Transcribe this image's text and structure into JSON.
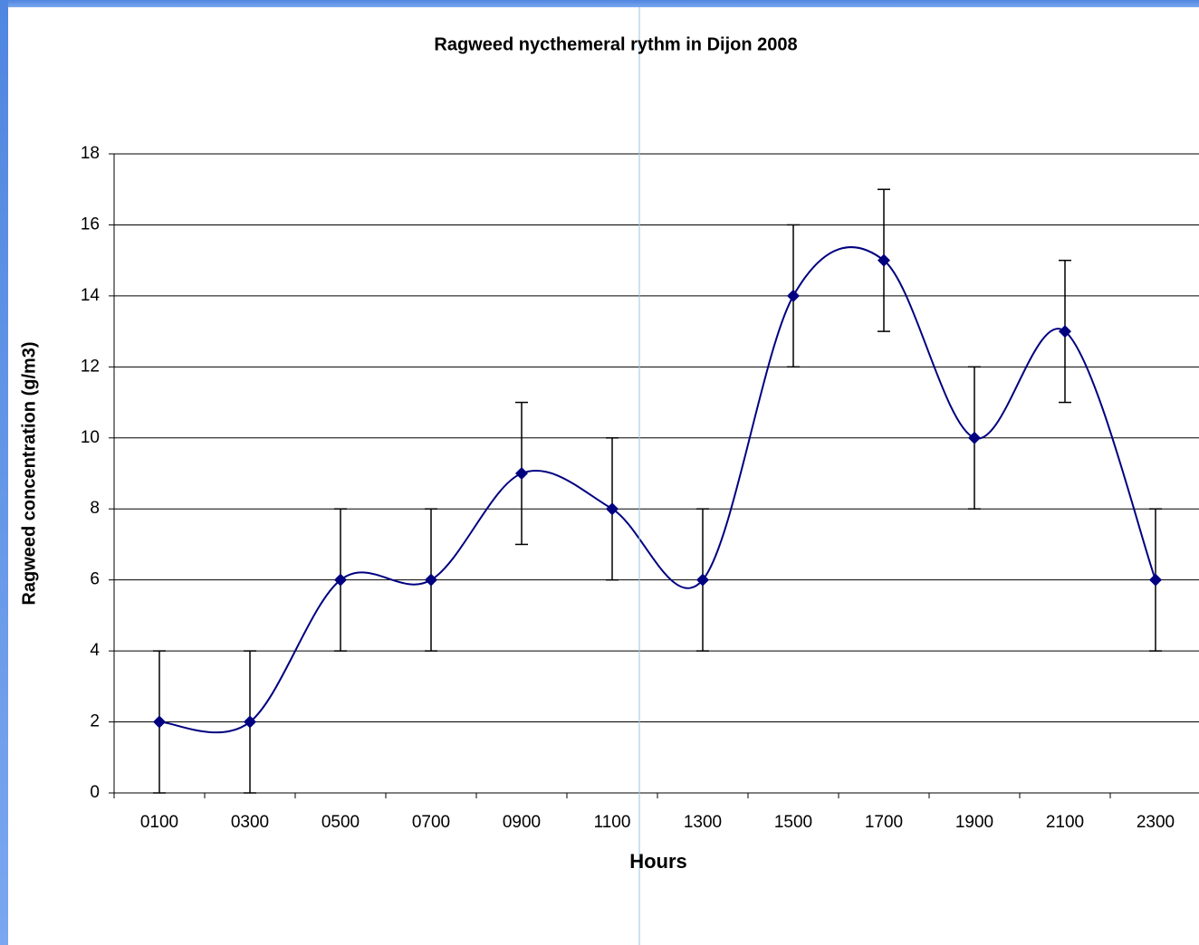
{
  "chart_data": {
    "type": "line",
    "title": "Ragweed nycthemeral rythm in Dijon 2008",
    "x_label": "Hours",
    "y_label": "Ragweed concentration (g/m3)",
    "categories": [
      "0100",
      "0300",
      "0500",
      "0700",
      "0900",
      "1100",
      "1300",
      "1500",
      "1700",
      "1900",
      "2100",
      "2300"
    ],
    "values": [
      2,
      2,
      6,
      6,
      9,
      8,
      6,
      14,
      15,
      10,
      13,
      6
    ],
    "errors": [
      2,
      2,
      2,
      2,
      2,
      2,
      2,
      2,
      2,
      2,
      2,
      2
    ],
    "color": "#000080",
    "smooth": true,
    "ylim": [
      0,
      18
    ],
    "yticks": [
      0,
      2,
      4,
      6,
      8,
      10,
      12,
      14,
      16,
      18
    ],
    "grid": true
  }
}
